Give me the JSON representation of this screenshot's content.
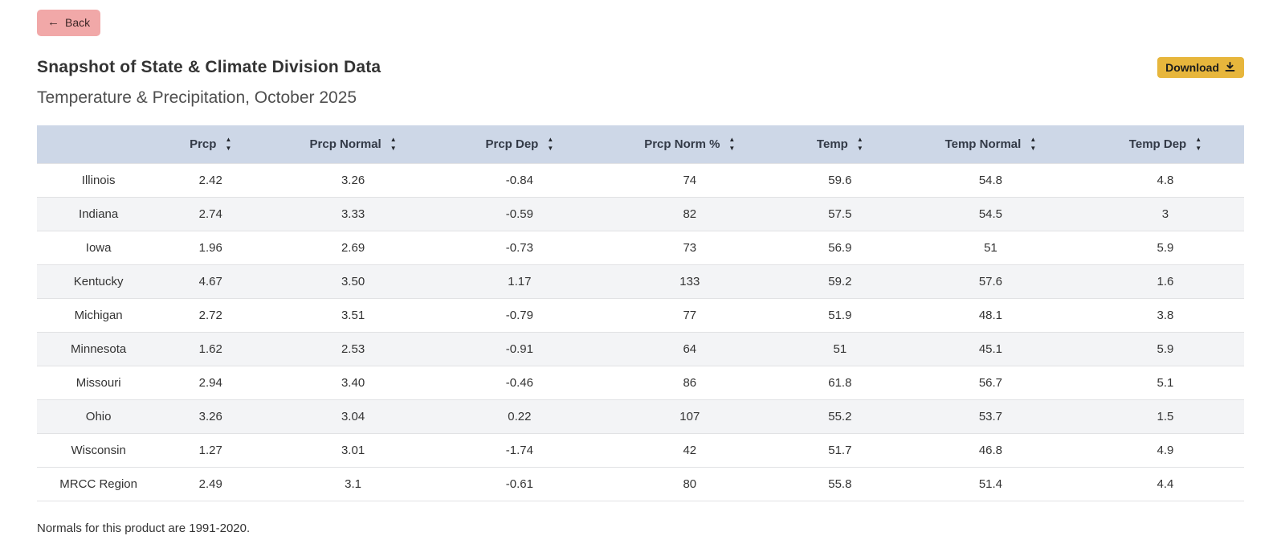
{
  "back_button": {
    "arrow": "←",
    "label": "Back"
  },
  "header": {
    "title": "Snapshot of State & Climate Division Data",
    "subtitle": "Temperature & Precipitation, October 2025",
    "download_label": "Download"
  },
  "table": {
    "columns": [
      "",
      "Prcp",
      "Prcp Normal",
      "Prcp Dep",
      "Prcp Norm %",
      "Temp",
      "Temp Normal",
      "Temp Dep"
    ],
    "rows": [
      {
        "name": "Illinois",
        "values": [
          "2.42",
          "3.26",
          "-0.84",
          "74",
          "59.6",
          "54.8",
          "4.8"
        ]
      },
      {
        "name": "Indiana",
        "values": [
          "2.74",
          "3.33",
          "-0.59",
          "82",
          "57.5",
          "54.5",
          "3"
        ]
      },
      {
        "name": "Iowa",
        "values": [
          "1.96",
          "2.69",
          "-0.73",
          "73",
          "56.9",
          "51",
          "5.9"
        ]
      },
      {
        "name": "Kentucky",
        "values": [
          "4.67",
          "3.50",
          "1.17",
          "133",
          "59.2",
          "57.6",
          "1.6"
        ]
      },
      {
        "name": "Michigan",
        "values": [
          "2.72",
          "3.51",
          "-0.79",
          "77",
          "51.9",
          "48.1",
          "3.8"
        ]
      },
      {
        "name": "Minnesota",
        "values": [
          "1.62",
          "2.53",
          "-0.91",
          "64",
          "51",
          "45.1",
          "5.9"
        ]
      },
      {
        "name": "Missouri",
        "values": [
          "2.94",
          "3.40",
          "-0.46",
          "86",
          "61.8",
          "56.7",
          "5.1"
        ]
      },
      {
        "name": "Ohio",
        "values": [
          "3.26",
          "3.04",
          "0.22",
          "107",
          "55.2",
          "53.7",
          "1.5"
        ]
      },
      {
        "name": "Wisconsin",
        "values": [
          "1.27",
          "3.01",
          "-1.74",
          "42",
          "51.7",
          "46.8",
          "4.9"
        ]
      },
      {
        "name": "MRCC Region",
        "values": [
          "2.49",
          "3.1",
          "-0.61",
          "80",
          "55.8",
          "51.4",
          "4.4"
        ]
      }
    ],
    "sort_icons": {
      "ascending": "▲",
      "descending": "▼"
    }
  },
  "footer": {
    "note": "Normals for this product are 1991-2020."
  },
  "colors": {
    "back-bg": "#f1a8a8",
    "download-bg": "#e7b63c",
    "header-bg": "#cdd7e7",
    "stripe-bg": "#f3f4f6",
    "row-border": "#e1e2e4",
    "body-text": "#333333"
  }
}
